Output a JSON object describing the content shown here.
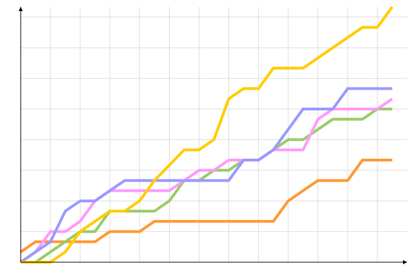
{
  "chart_data": {
    "type": "line",
    "title": "",
    "xlabel": "",
    "ylabel": "",
    "x": [
      0,
      1,
      2,
      3,
      4,
      5,
      6,
      7,
      8,
      9,
      10,
      11,
      12,
      13,
      14,
      15,
      16,
      17,
      18,
      19,
      20,
      21,
      22,
      23,
      24,
      25
    ],
    "xlim": [
      0,
      26
    ],
    "ylim": [
      0,
      25
    ],
    "x_grid_step": 2,
    "y_grid_step": 3,
    "grid": true,
    "tick_labels": false,
    "legend": "none",
    "series": [
      {
        "color": "#ff9933",
        "values": [
          1,
          2,
          2,
          2,
          2,
          2,
          3,
          3,
          3,
          4,
          4,
          4,
          4,
          4,
          4,
          4,
          4,
          4,
          6,
          7,
          8,
          8,
          8,
          10,
          10,
          10
        ]
      },
      {
        "color": "#99cc66",
        "values": [
          0,
          0,
          1,
          2,
          3,
          3,
          5,
          5,
          5,
          5,
          6,
          8,
          8,
          9,
          9,
          10,
          10,
          11,
          12,
          12,
          13,
          14,
          14,
          14,
          15,
          15
        ]
      },
      {
        "color": "#ff99ff",
        "values": [
          0,
          1,
          3,
          3,
          4,
          6,
          7,
          7,
          7,
          7,
          7,
          8,
          9,
          9,
          10,
          10,
          10,
          11,
          11,
          11,
          14,
          15,
          15,
          15,
          15,
          16
        ]
      },
      {
        "color": "#9999ff",
        "values": [
          0,
          1,
          2,
          5,
          6,
          6,
          7,
          8,
          8,
          8,
          8,
          8,
          8,
          8,
          8,
          10,
          10,
          11,
          13,
          15,
          15,
          15,
          17,
          17,
          17,
          17
        ]
      },
      {
        "color": "#ffcc00",
        "values": [
          0,
          0,
          0,
          1,
          3,
          4,
          5,
          5,
          6,
          8,
          9.5,
          11,
          11,
          12,
          16,
          17,
          17,
          19,
          19,
          19,
          20,
          21,
          22,
          23,
          23,
          25
        ]
      }
    ]
  }
}
